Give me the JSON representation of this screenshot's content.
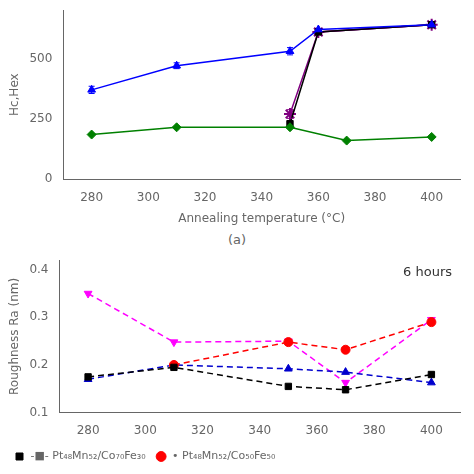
{
  "chart_data": [
    {
      "type": "line",
      "x_label": "Annealing temperature (°C)",
      "y_label": "Hc,Hex",
      "annotation": "(a)",
      "xlim": [
        270,
        410
      ],
      "ylim": [
        0,
        700
      ],
      "xticks": [
        280,
        300,
        320,
        340,
        360,
        380,
        400
      ],
      "yticks": [
        0,
        250,
        500
      ],
      "grid": false,
      "series": [
        {
          "color": "#0000FF",
          "marker": "triangle",
          "line_style": "solid",
          "x": [
            280,
            310,
            350,
            360,
            400
          ],
          "values": [
            370,
            470,
            530,
            620,
            640
          ],
          "yerr": [
            15,
            12,
            15,
            null,
            null
          ]
        },
        {
          "color": "#008000",
          "marker": "diamond",
          "line_style": "solid",
          "x": [
            280,
            310,
            350,
            370,
            400
          ],
          "values": [
            185,
            215,
            215,
            160,
            175
          ]
        },
        {
          "color": "#000000",
          "marker": "square",
          "line_style": "solid",
          "x": [
            350,
            360,
            400
          ],
          "values": [
            230,
            610,
            640
          ]
        },
        {
          "color": "#800080",
          "marker": "star",
          "line_style": "solid",
          "x": [
            350,
            360,
            400
          ],
          "values": [
            270,
            610,
            640
          ],
          "yerr": [
            18,
            null,
            null
          ]
        },
        {
          "color": "#800080",
          "marker": "triangle-open",
          "line_style": "solid",
          "x": [
            360,
            400
          ],
          "values": [
            610,
            640
          ]
        }
      ]
    },
    {
      "type": "line",
      "y_label": "Roughness Ra (nm)",
      "annotation": "6 hours",
      "xlim": [
        270,
        410
      ],
      "ylim": [
        0.1,
        0.42
      ],
      "xticks": [
        280,
        300,
        320,
        340,
        360,
        380,
        400
      ],
      "yticks": [
        0.1,
        0.2,
        0.3,
        0.4
      ],
      "grid": false,
      "legend": "lower left",
      "series": [
        {
          "name": "-■- Pt₄₈Mn₅₂/Co₇₀Fe₃₀",
          "color": "#000000",
          "marker": "square",
          "line_style": "dashed",
          "x": [
            280,
            310,
            350,
            370,
            400
          ],
          "values": [
            0.175,
            0.195,
            0.155,
            0.148,
            0.18
          ]
        },
        {
          "name": "• Pt₄₈Mn₅₂/Co₅₀Fe₅₀",
          "color": "#FF0000",
          "marker": "circle",
          "line_style": "dashed",
          "x": [
            310,
            350,
            370,
            400
          ],
          "values": [
            0.2,
            0.248,
            0.232,
            0.29
          ]
        },
        {
          "color": "#0000CD",
          "marker": "triangle",
          "line_style": "dashed",
          "x": [
            280,
            310,
            350,
            370,
            400
          ],
          "values": [
            0.17,
            0.2,
            0.192,
            0.185,
            0.163
          ]
        },
        {
          "color": "#FF00FF",
          "marker": "triangle-down",
          "line_style": "dashed",
          "x": [
            280,
            310,
            350,
            370,
            400
          ],
          "values": [
            0.35,
            0.248,
            0.25,
            0.163,
            0.295
          ]
        }
      ]
    }
  ]
}
